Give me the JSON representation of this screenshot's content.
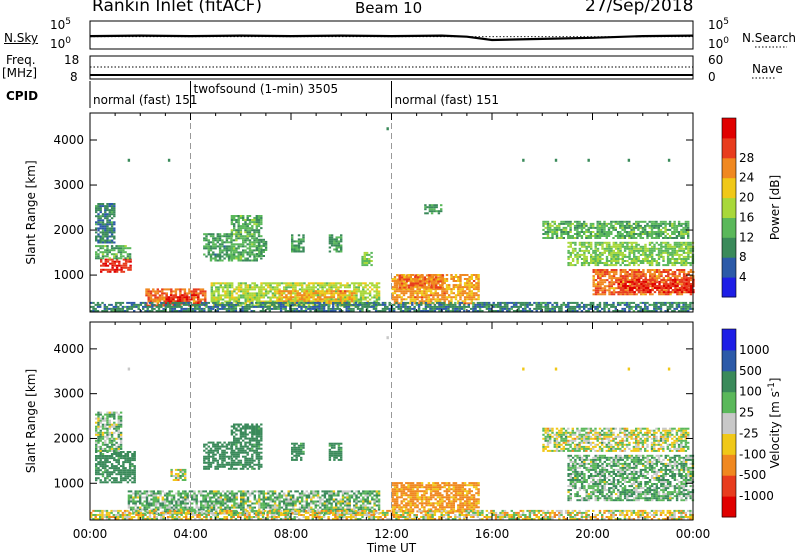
{
  "header": {
    "station": "Rankin Inlet (fitACF)",
    "beam": "Beam 10",
    "date": "27/Sep/2018"
  },
  "left_labels": {
    "nsky": "N.Sky",
    "freq": "Freq.",
    "freq_unit": "[MHz]",
    "cpid": "CPID"
  },
  "right_labels": {
    "nsearch": "N.Search",
    "nave": "Nave"
  },
  "panels": {
    "noise_ticks_left": [
      "10^5",
      "10^0"
    ],
    "noise_ticks_right": [
      "10^5",
      "10^0"
    ],
    "freq_ticks_left": [
      "18",
      "8"
    ],
    "freq_ticks_right": [
      "60",
      "0"
    ]
  },
  "chart_data": [
    {
      "type": "line",
      "panel": "noise",
      "series": [
        {
          "name": "N.Sky",
          "x": [
            0,
            2,
            4,
            6,
            8,
            10,
            12,
            14,
            15,
            16,
            18,
            20,
            22,
            24
          ],
          "y": [
            2.3,
            2.4,
            2.3,
            2.4,
            2.3,
            2.4,
            2.3,
            2.4,
            2.2,
            1.6,
            1.8,
            2.0,
            2.3,
            2.4
          ]
        },
        {
          "name": "N.Search",
          "x": [
            0,
            4,
            8,
            12,
            16,
            20,
            24
          ],
          "y": [
            2.2,
            2.2,
            2.2,
            2.2,
            2.2,
            2.2,
            2.2
          ]
        }
      ],
      "ylim": [
        0,
        5
      ]
    },
    {
      "type": "line",
      "panel": "frequency",
      "series": [
        {
          "name": "Freq.",
          "x": [
            0,
            4,
            12,
            16,
            24
          ],
          "y": [
            10.5,
            10.5,
            10.5,
            10.5,
            10.5
          ]
        },
        {
          "name": "Nave",
          "x": [
            0,
            4,
            12,
            16,
            24
          ],
          "y": [
            36,
            36,
            36,
            36,
            36
          ]
        }
      ]
    },
    {
      "type": "table",
      "panel": "cpid",
      "segments": [
        {
          "label": "normal (fast)",
          "id": "151",
          "start": 0,
          "end": 4
        },
        {
          "label": "twofsound (1-min)",
          "id": "3505",
          "start": 4,
          "end": 12
        },
        {
          "label": "normal (fast)",
          "id": "151",
          "start": 12,
          "end": 24
        }
      ]
    },
    {
      "type": "heatmap",
      "panel": "power",
      "ylabel": "Slant Range [km]",
      "xlim": [
        0,
        24
      ],
      "ylim": [
        180,
        4600
      ],
      "yticks": [
        "1000",
        "2000",
        "3000",
        "4000"
      ],
      "colorbar": {
        "label": "Power [dB]",
        "ticks": [
          "4",
          "8",
          "12",
          "16",
          "20",
          "24",
          "28"
        ],
        "range": [
          0,
          32
        ],
        "colors": [
          "#1e1ee6",
          "#2c5aa8",
          "#3a8a5a",
          "#5ab85a",
          "#a8d83a",
          "#f0c818",
          "#f08820",
          "#e83c1e",
          "#e00000"
        ]
      },
      "regions": [
        {
          "t": [
            0.4,
            1.6
          ],
          "r": [
            1050,
            1350
          ],
          "v": 28
        },
        {
          "t": [
            0.2,
            1.6
          ],
          "r": [
            1350,
            1650
          ],
          "v": 12
        },
        {
          "t": [
            0.2,
            1.0
          ],
          "r": [
            1700,
            2600
          ],
          "v": 8
        },
        {
          "t": [
            2.2,
            4.6
          ],
          "r": [
            300,
            700
          ],
          "v": 24
        },
        {
          "t": [
            3.0,
            4.3
          ],
          "r": [
            350,
            550
          ],
          "v": 28
        },
        {
          "t": [
            4.5,
            5.6
          ],
          "r": [
            1300,
            1900
          ],
          "v": 10
        },
        {
          "t": [
            5.6,
            6.8
          ],
          "r": [
            1300,
            2300
          ],
          "v": 12
        },
        {
          "t": [
            6.6,
            7.0
          ],
          "r": [
            1400,
            1800
          ],
          "v": 10
        },
        {
          "t": [
            8.0,
            8.5
          ],
          "r": [
            1500,
            1900
          ],
          "v": 10
        },
        {
          "t": [
            9.5,
            10.0
          ],
          "r": [
            1500,
            1900
          ],
          "v": 10
        },
        {
          "t": [
            10.8,
            11.2
          ],
          "r": [
            1200,
            1500
          ],
          "v": 14
        },
        {
          "t": [
            4.8,
            11.5
          ],
          "r": [
            300,
            800
          ],
          "v": 16
        },
        {
          "t": [
            7.5,
            10.5
          ],
          "r": [
            350,
            650
          ],
          "v": 22
        },
        {
          "t": [
            12.0,
            15.5
          ],
          "r": [
            350,
            1000
          ],
          "v": 22
        },
        {
          "t": [
            12.2,
            14.0
          ],
          "r": [
            700,
            1000
          ],
          "v": 24
        },
        {
          "t": [
            13.3,
            14.0
          ],
          "r": [
            2350,
            2550
          ],
          "v": 10
        },
        {
          "t": [
            18.0,
            23.8
          ],
          "r": [
            1800,
            2200
          ],
          "v": 12
        },
        {
          "t": [
            20.0,
            24.0
          ],
          "r": [
            550,
            1100
          ],
          "v": 24
        },
        {
          "t": [
            21.0,
            24.0
          ],
          "r": [
            600,
            900
          ],
          "v": 28
        },
        {
          "t": [
            19.0,
            24.0
          ],
          "r": [
            1200,
            1700
          ],
          "v": 14
        },
        {
          "t": [
            0,
            24
          ],
          "r": [
            180,
            400
          ],
          "v": 8
        }
      ],
      "speckles": [
        {
          "t": 1.5,
          "r": 3550,
          "v": 8
        },
        {
          "t": 3.1,
          "r": 3550,
          "v": 8
        },
        {
          "t": 17.2,
          "r": 3550,
          "v": 8
        },
        {
          "t": 18.5,
          "r": 3550,
          "v": 8
        },
        {
          "t": 19.8,
          "r": 3550,
          "v": 8
        },
        {
          "t": 21.4,
          "r": 3550,
          "v": 8
        },
        {
          "t": 23.0,
          "r": 3550,
          "v": 8
        },
        {
          "t": 11.8,
          "r": 4250,
          "v": 8
        }
      ]
    },
    {
      "type": "heatmap",
      "panel": "velocity",
      "ylabel": "Slant Range [km]",
      "xlabel": "Time UT",
      "xlim": [
        0,
        24
      ],
      "ylim": [
        180,
        4600
      ],
      "xticks": [
        "00:00",
        "04:00",
        "08:00",
        "12:00",
        "16:00",
        "20:00",
        "00:00"
      ],
      "yticks": [
        "1000",
        "2000",
        "3000",
        "4000"
      ],
      "colorbar": {
        "label": "Velocity [m s^-1]",
        "ticks": [
          "1000",
          "500",
          "100",
          "25",
          "-25",
          "-100",
          "-500",
          "-1000"
        ],
        "colors": [
          "#1e1ee6",
          "#2c5aa8",
          "#3a8a5a",
          "#5ab85a",
          "#c8c8c8",
          "#f0c818",
          "#f08820",
          "#e83c1e",
          "#e00000"
        ]
      },
      "regions": [
        {
          "t": [
            0.2,
            1.8
          ],
          "r": [
            1000,
            1700
          ],
          "v": 200
        },
        {
          "t": [
            0.2,
            1.2
          ],
          "r": [
            1700,
            2600
          ],
          "v": 60
        },
        {
          "t": [
            1.5,
            4.8
          ],
          "r": [
            300,
            800
          ],
          "v": 80
        },
        {
          "t": [
            3.2,
            3.8
          ],
          "r": [
            1050,
            1300
          ],
          "v": 0
        },
        {
          "t": [
            4.5,
            5.6
          ],
          "r": [
            1300,
            1900
          ],
          "v": 300
        },
        {
          "t": [
            5.6,
            6.8
          ],
          "r": [
            1300,
            2300
          ],
          "v": 200
        },
        {
          "t": [
            8.0,
            8.5
          ],
          "r": [
            1500,
            1900
          ],
          "v": 200
        },
        {
          "t": [
            9.5,
            10.0
          ],
          "r": [
            1500,
            1900
          ],
          "v": 200
        },
        {
          "t": [
            4.8,
            11.5
          ],
          "r": [
            300,
            800
          ],
          "v": 60
        },
        {
          "t": [
            12.0,
            15.5
          ],
          "r": [
            350,
            1000
          ],
          "v": -150
        },
        {
          "t": [
            18.0,
            23.8
          ],
          "r": [
            1700,
            2200
          ],
          "v": 0
        },
        {
          "t": [
            19.0,
            24.0
          ],
          "r": [
            600,
            1600
          ],
          "v": 80
        },
        {
          "t": [
            0,
            24
          ],
          "r": [
            180,
            400
          ],
          "v": -30
        }
      ],
      "speckles": [
        {
          "t": 1.5,
          "r": 3550,
          "v": 0
        },
        {
          "t": 17.2,
          "r": 3550,
          "v": -60
        },
        {
          "t": 18.5,
          "r": 3550,
          "v": -60
        },
        {
          "t": 21.4,
          "r": 3550,
          "v": -60
        },
        {
          "t": 23.0,
          "r": 3550,
          "v": -60
        },
        {
          "t": 11.8,
          "r": 4250,
          "v": 0
        }
      ]
    }
  ]
}
